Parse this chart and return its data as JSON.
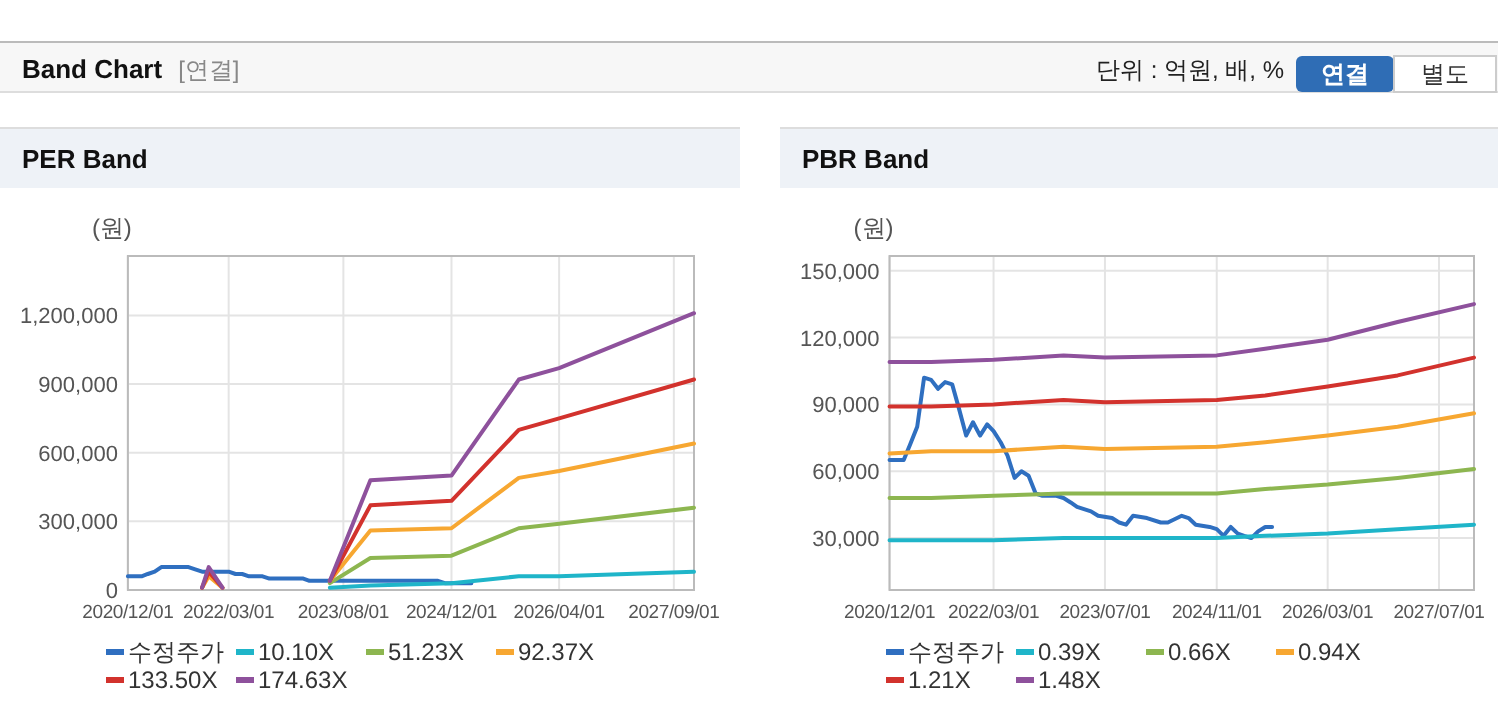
{
  "chart_data": [
    {
      "type": "other",
      "title": "Band Chart",
      "subtitle": "[연결]",
      "annotations": [
        "단위 : 억원, 배, %",
        "연결",
        "별도"
      ]
    },
    {
      "type": "line",
      "title": "PER Band",
      "ylabel": "(원)",
      "grid": true,
      "legend": "bottom",
      "xlim": [
        "2020-12-01",
        "2027-12-01"
      ],
      "ylim": [
        0,
        1460000
      ],
      "xticks": [
        {
          "value": "2020-12-01",
          "label": "2020/12/01"
        },
        {
          "value": "2022-03-01",
          "label": "2022/03/01"
        },
        {
          "value": "2023-08-01",
          "label": "2023/08/01"
        },
        {
          "value": "2024-12-01",
          "label": "2024/12/01"
        },
        {
          "value": "2026-04-01",
          "label": "2026/04/01"
        },
        {
          "value": "2027-09-01",
          "label": "2027/09/01"
        }
      ],
      "yticks": [
        {
          "value": 0,
          "label": "0"
        },
        {
          "value": 300000,
          "label": "300,000"
        },
        {
          "value": 600000,
          "label": "600,000"
        },
        {
          "value": 900000,
          "label": "900,000"
        },
        {
          "value": 1200000,
          "label": "1,200,000"
        }
      ],
      "series": [
        {
          "name": "수정주가",
          "color": "#2f6fc0",
          "x": [
            "2020-12",
            "2021-02",
            "2021-03",
            "2021-04",
            "2021-05",
            "2021-06",
            "2021-07",
            "2021-08",
            "2021-09",
            "2021-10",
            "2021-11",
            "2021-12",
            "2022-01",
            "2022-02",
            "2022-03",
            "2022-04",
            "2022-05",
            "2022-06",
            "2022-07",
            "2022-08",
            "2022-09",
            "2022-10",
            "2022-12",
            "2023-01",
            "2023-02",
            "2023-03",
            "2023-05",
            "2023-06",
            "2023-08",
            "2023-09",
            "2023-10",
            "2023-11",
            "2024-01",
            "2024-03",
            "2024-04",
            "2024-06",
            "2024-07",
            "2024-08",
            "2024-10",
            "2024-11",
            "2024-12",
            "2025-01",
            "2025-02",
            "2025-03"
          ],
          "values": [
            60000,
            60000,
            70000,
            80000,
            100000,
            100000,
            100000,
            100000,
            100000,
            90000,
            80000,
            80000,
            80000,
            80000,
            80000,
            70000,
            70000,
            60000,
            60000,
            60000,
            50000,
            50000,
            50000,
            50000,
            50000,
            40000,
            40000,
            40000,
            40000,
            40000,
            40000,
            40000,
            40000,
            40000,
            40000,
            40000,
            40000,
            40000,
            40000,
            30000,
            30000,
            30000,
            30000,
            30000
          ]
        },
        {
          "name": "10.10X",
          "color": "#1fb5c9",
          "x": [
            "2023-06",
            "2023-12",
            "2024-12",
            "2025-10",
            "2026-04",
            "2027-12"
          ],
          "values": [
            10000,
            20000,
            30000,
            60000,
            60000,
            80000
          ]
        },
        {
          "name": "51.23X",
          "color": "#8db650",
          "x": [
            "2023-06",
            "2023-12",
            "2024-12",
            "2025-10",
            "2026-04",
            "2027-12"
          ],
          "values": [
            30000,
            140000,
            150000,
            270000,
            290000,
            360000
          ]
        },
        {
          "name": "92.37X",
          "color": "#f7a731",
          "x": [
            "2021-11",
            "2021-12",
            "2022-02",
            "2022-10",
            "2023-06",
            "2023-12",
            "2024-12",
            "2025-10",
            "2026-04",
            "2027-12"
          ],
          "values": [
            10000,
            60000,
            10000,
            null,
            40000,
            260000,
            270000,
            490000,
            520000,
            640000
          ]
        },
        {
          "name": "133.50X",
          "color": "#d2322d",
          "x": [
            "2021-11",
            "2021-12",
            "2022-02",
            "2022-10",
            "2023-06",
            "2023-12",
            "2024-12",
            "2025-10",
            "2026-04",
            "2027-12"
          ],
          "values": [
            10000,
            80000,
            10000,
            null,
            40000,
            370000,
            390000,
            700000,
            750000,
            920000
          ]
        },
        {
          "name": "174.63X",
          "color": "#8e519c",
          "x": [
            "2021-11",
            "2021-12",
            "2022-02",
            "2022-10",
            "2023-06",
            "2023-12",
            "2024-12",
            "2025-10",
            "2026-04",
            "2027-12"
          ],
          "values": [
            10000,
            100000,
            10000,
            null,
            40000,
            480000,
            500000,
            920000,
            970000,
            1210000
          ]
        }
      ]
    },
    {
      "type": "line",
      "title": "PBR Band",
      "ylabel": "(원)",
      "grid": true,
      "legend": "bottom",
      "xlim": [
        "2020-12-01",
        "2027-12-01"
      ],
      "ylim": [
        6700,
        156600
      ],
      "xticks": [
        {
          "value": "2020-12-01",
          "label": "2020/12/01"
        },
        {
          "value": "2022-03-01",
          "label": "2022/03/01"
        },
        {
          "value": "2023-07-01",
          "label": "2023/07/01"
        },
        {
          "value": "2024-11-01",
          "label": "2024/11/01"
        },
        {
          "value": "2026-03-01",
          "label": "2026/03/01"
        },
        {
          "value": "2027-07-01",
          "label": "2027/07/01"
        }
      ],
      "yticks": [
        {
          "value": 30000,
          "label": "30,000"
        },
        {
          "value": 60000,
          "label": "60,000"
        },
        {
          "value": 90000,
          "label": "90,000"
        },
        {
          "value": 120000,
          "label": "120,000"
        },
        {
          "value": 150000,
          "label": "150,000"
        }
      ],
      "series": [
        {
          "name": "수정주가",
          "color": "#2f6fc0",
          "x": [
            "2020-12",
            "2021-02",
            "2021-03",
            "2021-04",
            "2021-05",
            "2021-06",
            "2021-07",
            "2021-08",
            "2021-09",
            "2021-10",
            "2021-11",
            "2021-12",
            "2022-01",
            "2022-02",
            "2022-03",
            "2022-04",
            "2022-05",
            "2022-06",
            "2022-07",
            "2022-08",
            "2022-09",
            "2022-10",
            "2022-12",
            "2023-01",
            "2023-02",
            "2023-03",
            "2023-05",
            "2023-06",
            "2023-08",
            "2023-09",
            "2023-10",
            "2023-11",
            "2024-01",
            "2024-03",
            "2024-04",
            "2024-06",
            "2024-07",
            "2024-08",
            "2024-10",
            "2024-11",
            "2024-12",
            "2025-01",
            "2025-02",
            "2025-03",
            "2025-04",
            "2025-05",
            "2025-06",
            "2025-07"
          ],
          "values": [
            65000,
            65000,
            72000,
            80000,
            102000,
            101000,
            97000,
            100000,
            99000,
            88000,
            76000,
            82000,
            76000,
            81000,
            78000,
            73000,
            67000,
            57000,
            60000,
            58000,
            50000,
            49000,
            49000,
            48000,
            46000,
            44000,
            42000,
            40000,
            39000,
            37000,
            36000,
            40000,
            39000,
            37000,
            37000,
            40000,
            39000,
            36000,
            35000,
            34000,
            31000,
            35000,
            32000,
            31000,
            30000,
            33000,
            35000,
            35000
          ]
        },
        {
          "name": "0.39X",
          "color": "#1fb5c9",
          "x": [
            "2020-12",
            "2021-06",
            "2022-03",
            "2023-01",
            "2023-07",
            "2024-11",
            "2025-06",
            "2026-03",
            "2027-01",
            "2027-12"
          ],
          "values": [
            29000,
            29000,
            29000,
            30000,
            30000,
            30000,
            31000,
            32000,
            34000,
            36000
          ]
        },
        {
          "name": "0.66X",
          "color": "#8db650",
          "x": [
            "2020-12",
            "2021-06",
            "2022-03",
            "2023-01",
            "2023-07",
            "2024-11",
            "2025-06",
            "2026-03",
            "2027-01",
            "2027-12"
          ],
          "values": [
            48000,
            48000,
            49000,
            50000,
            50000,
            50000,
            52000,
            54000,
            57000,
            61000
          ]
        },
        {
          "name": "0.94X",
          "color": "#f7a731",
          "x": [
            "2020-12",
            "2021-06",
            "2022-03",
            "2023-01",
            "2023-07",
            "2024-11",
            "2025-06",
            "2026-03",
            "2027-01",
            "2027-12"
          ],
          "values": [
            68000,
            69000,
            69000,
            71000,
            70000,
            71000,
            73000,
            76000,
            80000,
            86000
          ]
        },
        {
          "name": "1.21X",
          "color": "#d2322d",
          "x": [
            "2020-12",
            "2021-06",
            "2022-03",
            "2023-01",
            "2023-07",
            "2024-11",
            "2025-06",
            "2026-03",
            "2027-01",
            "2027-12"
          ],
          "values": [
            89000,
            89000,
            90000,
            92000,
            91000,
            92000,
            94000,
            98000,
            103000,
            111000
          ]
        },
        {
          "name": "1.48X",
          "color": "#8e519c",
          "x": [
            "2020-12",
            "2021-06",
            "2022-03",
            "2023-01",
            "2023-07",
            "2024-11",
            "2025-06",
            "2026-03",
            "2027-01",
            "2027-12"
          ],
          "values": [
            109000,
            109000,
            110000,
            112000,
            111000,
            112000,
            115000,
            119000,
            127000,
            135000
          ]
        }
      ]
    }
  ]
}
